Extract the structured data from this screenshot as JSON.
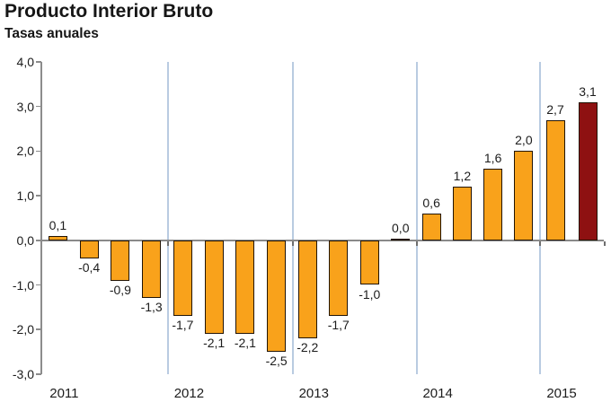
{
  "header": {
    "title": "Producto Interior Bruto",
    "subtitle": "Tasas anuales"
  },
  "chart_data": {
    "type": "bar",
    "title": "Producto Interior Bruto",
    "subtitle": "Tasas anuales",
    "years": [
      {
        "label": "2011",
        "values": [
          0.1,
          -0.4,
          -0.9,
          -1.3
        ],
        "display": [
          "0,1",
          "-0,4",
          "-0,9",
          "-1,3"
        ]
      },
      {
        "label": "2012",
        "values": [
          -1.7,
          -2.1,
          -2.1,
          -2.5
        ],
        "display": [
          "-1,7",
          "-2,1",
          "-2,1",
          "-2,5"
        ]
      },
      {
        "label": "2013",
        "values": [
          -2.2,
          -1.7,
          -1.0,
          0.0
        ],
        "display": [
          "-2,2",
          "-1,7",
          "-1,0",
          "0,0"
        ]
      },
      {
        "label": "2014",
        "values": [
          0.6,
          1.2,
          1.6,
          2.0
        ],
        "display": [
          "0,6",
          "1,2",
          "1,6",
          "2,0"
        ]
      },
      {
        "label": "2015",
        "values": [
          2.7,
          3.1
        ],
        "display": [
          "2,7",
          "3,1"
        ]
      }
    ],
    "yticks": [
      "4,0",
      "3,0",
      "2,0",
      "1,0",
      "0,0",
      "-1,0",
      "-2,0",
      "-3,0"
    ],
    "ylim": [
      -3.0,
      4.0
    ],
    "legend": "none",
    "grid": "vertical-year-separators",
    "colors": {
      "bar": "#F9A21B",
      "bar_border": "#221405",
      "highlight_bar": "#8E1111",
      "gridline": "#b9cbe1",
      "axis": "#8c8c8c",
      "text": "#1c1c1c"
    },
    "highlight_last_bar": true
  }
}
